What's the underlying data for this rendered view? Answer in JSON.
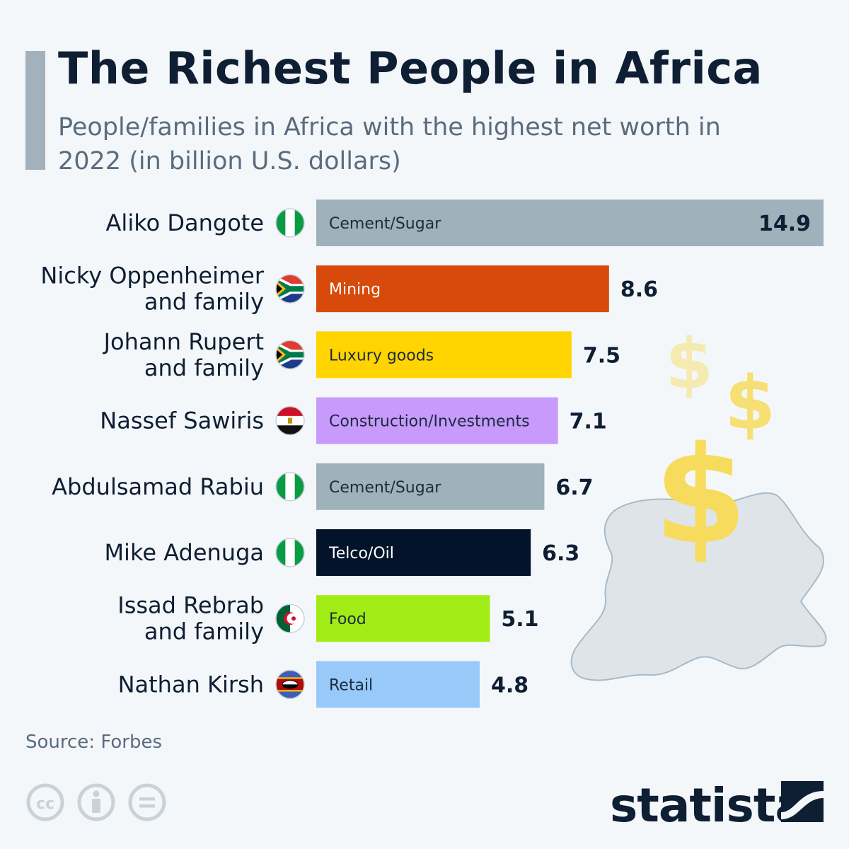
{
  "header": {
    "title": "The Richest People in Africa",
    "subtitle": "People/families in Africa with the highest net worth in 2022 (in billion U.S. dollars)"
  },
  "chart_data": {
    "type": "bar",
    "orientation": "horizontal",
    "xlim": [
      0,
      14.9
    ],
    "grid": false,
    "items": [
      {
        "name": [
          "Aliko Dangote"
        ],
        "flag": "nigeria-flag-icon",
        "category": "Cement/Sugar",
        "value": 14.9,
        "color": "#9fb2bb",
        "label_color": "#1c2b3d"
      },
      {
        "name": [
          "Nicky Oppenheimer",
          "and family"
        ],
        "flag": "south-africa-flag-icon",
        "category": "Mining",
        "value": 8.6,
        "color": "#d74a0c",
        "label_color": "#ffffff"
      },
      {
        "name": [
          "Johann Rupert",
          "and family"
        ],
        "flag": "south-africa-flag-icon",
        "category": "Luxury goods",
        "value": 7.5,
        "color": "#ffd400",
        "label_color": "#1c2b3d"
      },
      {
        "name": [
          "Nassef Sawiris"
        ],
        "flag": "egypt-flag-icon",
        "category": "Construction/Investments",
        "value": 7.1,
        "color": "#c79afb",
        "label_color": "#1c2b3d"
      },
      {
        "name": [
          "Abdulsamad Rabiu"
        ],
        "flag": "nigeria-flag-icon",
        "category": "Cement/Sugar",
        "value": 6.7,
        "color": "#9fb2bb",
        "label_color": "#1c2b3d"
      },
      {
        "name": [
          "Mike Adenuga"
        ],
        "flag": "nigeria-flag-icon",
        "category": "Telco/Oil",
        "value": 6.3,
        "color": "#03142a",
        "label_color": "#ffffff"
      },
      {
        "name": [
          "Issad Rebrab",
          "and family"
        ],
        "flag": "algeria-flag-icon",
        "category": "Food",
        "value": 5.1,
        "color": "#a1ec15",
        "label_color": "#1c2b3d"
      },
      {
        "name": [
          "Nathan Kirsh"
        ],
        "flag": "eswatini-flag-icon",
        "category": "Retail",
        "value": 4.8,
        "color": "#98c9f9",
        "label_color": "#1c2b3d"
      }
    ]
  },
  "footer": {
    "source": "Source: Forbes",
    "brand": "statista"
  },
  "illustration": {
    "description_icon": "africa-map-with-dollar-signs-icon",
    "dollar_color": "#f7db5c",
    "map_color": "#dfe4e8"
  }
}
